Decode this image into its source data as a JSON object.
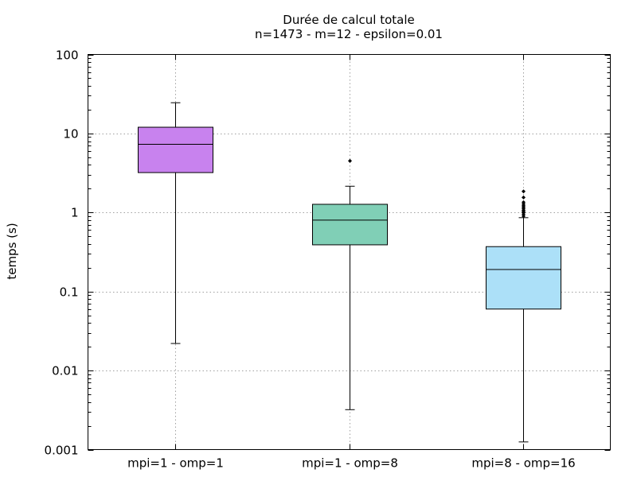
{
  "chart_data": {
    "type": "boxplot",
    "title": "Durée de calcul totale",
    "subtitle": "n=1473 - m=12 - epsilon=0.01",
    "xlabel": "",
    "ylabel": "temps (s)",
    "yscale": "log",
    "ylim": [
      0.001,
      100
    ],
    "yticks": [
      {
        "value": 0.001,
        "label": "0.001"
      },
      {
        "value": 0.01,
        "label": "0.01"
      },
      {
        "value": 0.1,
        "label": "0.1"
      },
      {
        "value": 1,
        "label": "1"
      },
      {
        "value": 10,
        "label": "10"
      },
      {
        "value": 100,
        "label": "100"
      }
    ],
    "grid": true,
    "categories": [
      "mpi=1 - omp=1",
      "mpi=1 - omp=8",
      "mpi=8 - omp=16"
    ],
    "boxes": [
      {
        "category": "mpi=1 - omp=1",
        "whisker_low": 0.022,
        "q1": 3.2,
        "median": 7.3,
        "q3": 12.0,
        "whisker_high": 24.5,
        "outliers": [],
        "color": "#c882ee"
      },
      {
        "category": "mpi=1 - omp=8",
        "whisker_low": 0.0032,
        "q1": 0.39,
        "median": 0.8,
        "q3": 1.27,
        "whisker_high": 2.15,
        "outliers": [
          4.5
        ],
        "color": "#80cfb6"
      },
      {
        "category": "mpi=8 - omp=16",
        "whisker_low": 0.00125,
        "q1": 0.06,
        "median": 0.19,
        "q3": 0.37,
        "whisker_high": 0.86,
        "outliers": [
          0.9,
          0.95,
          1.0,
          1.03,
          1.07,
          1.12,
          1.17,
          1.22,
          1.28,
          1.35,
          1.55,
          1.85
        ],
        "color": "#ace0f8"
      }
    ]
  }
}
